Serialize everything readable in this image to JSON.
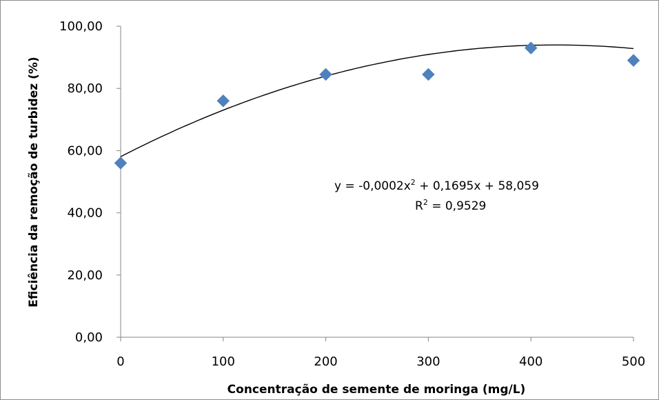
{
  "chart_data": {
    "type": "scatter",
    "title": "",
    "xlabel": "Concentração  de semente de moringa (mg/L)",
    "ylabel": "Eficiência  da  remoção  de  turbidez  (%)",
    "xlim": [
      0,
      500
    ],
    "ylim": [
      0,
      100
    ],
    "x_ticks": [
      0,
      100,
      200,
      300,
      400,
      500
    ],
    "x_tick_labels": [
      "0",
      "100",
      "200",
      "300",
      "400",
      "500"
    ],
    "y_ticks": [
      0,
      20,
      40,
      60,
      80,
      100
    ],
    "y_tick_labels": [
      "0,00",
      "20,00",
      "40,00",
      "60,00",
      "80,00",
      "100,00"
    ],
    "grid": false,
    "legend": "none",
    "series": [
      {
        "x": [
          0,
          100,
          200,
          300,
          400,
          500
        ],
        "y": [
          56.0,
          76.0,
          84.5,
          84.5,
          93.0,
          89.0
        ],
        "marker": "diamond",
        "color": "#4F81BD"
      }
    ],
    "trendline": {
      "type": "polynomial",
      "order": 2,
      "coefficients": {
        "a": -0.0002,
        "b": 0.1695,
        "c": 58.059
      },
      "color": "#000000"
    },
    "annotations": {
      "equation_pre": "y = -0,0002x",
      "equation_sup": "2",
      "equation_post": " + 0,1695x + 58,059",
      "r2_pre": "R",
      "r2_sup": "2",
      "r2_post": " = 0,9529"
    }
  }
}
